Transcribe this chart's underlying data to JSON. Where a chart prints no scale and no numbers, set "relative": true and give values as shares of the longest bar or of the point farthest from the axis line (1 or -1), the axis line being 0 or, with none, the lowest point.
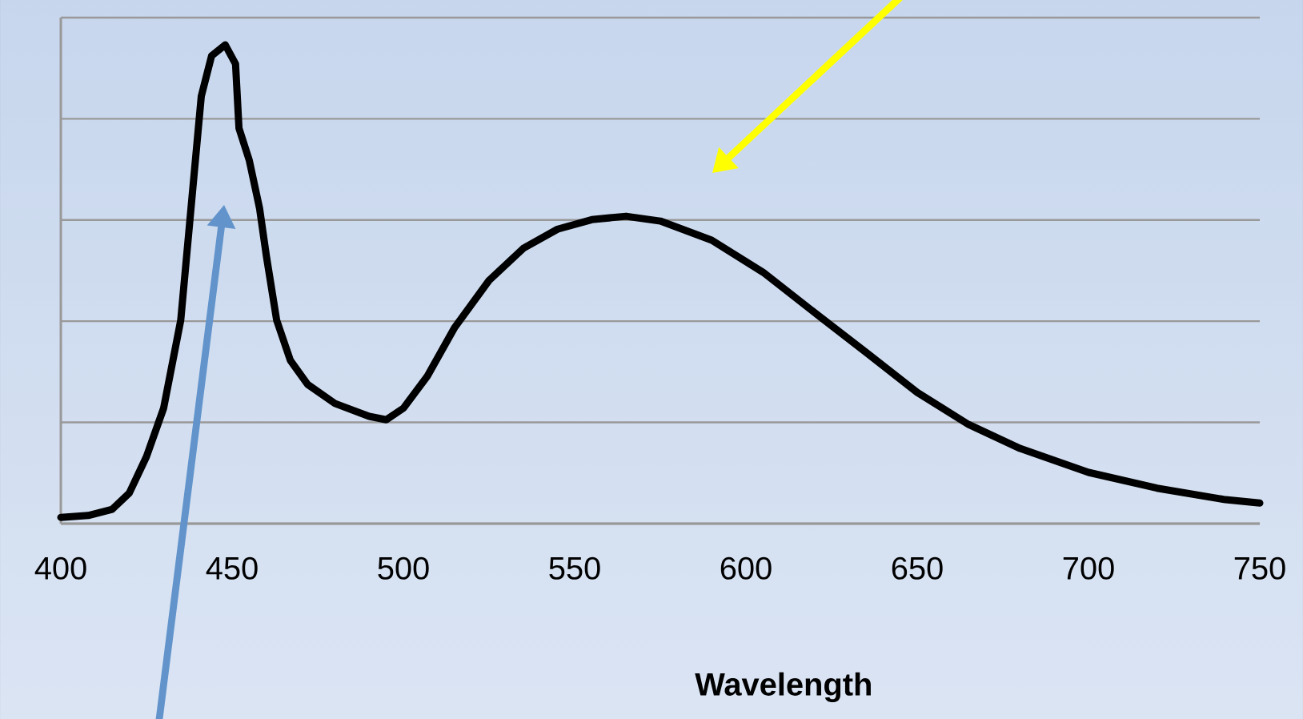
{
  "chart_data": {
    "type": "line",
    "xlabel": "Wavelength",
    "relative": true,
    "grid": "y",
    "marker": "none",
    "line_style": "solid",
    "xlim": [
      400,
      750
    ],
    "xticks": [
      400,
      450,
      500,
      550,
      600,
      650,
      700,
      750
    ],
    "series": [
      {
        "color": "#000000",
        "x": [
          400,
          408,
          415,
          420,
          425,
          430,
          435,
          438,
          441,
          444,
          448,
          451,
          452,
          455,
          458,
          460,
          463,
          467,
          472,
          480,
          490,
          495,
          500,
          507,
          515,
          525,
          535,
          545,
          555,
          565,
          575,
          590,
          605,
          620,
          635,
          650,
          665,
          680,
          700,
          720,
          740,
          750
        ],
        "values": [
          0.013,
          0.017,
          0.03,
          0.064,
          0.14,
          0.241,
          0.425,
          0.659,
          0.893,
          0.977,
          1.0,
          0.96,
          0.826,
          0.759,
          0.659,
          0.559,
          0.425,
          0.341,
          0.291,
          0.251,
          0.224,
          0.217,
          0.241,
          0.308,
          0.41,
          0.508,
          0.575,
          0.615,
          0.635,
          0.642,
          0.632,
          0.592,
          0.525,
          0.441,
          0.358,
          0.274,
          0.207,
          0.157,
          0.107,
          0.074,
          0.05,
          0.043
        ]
      }
    ]
  }
}
